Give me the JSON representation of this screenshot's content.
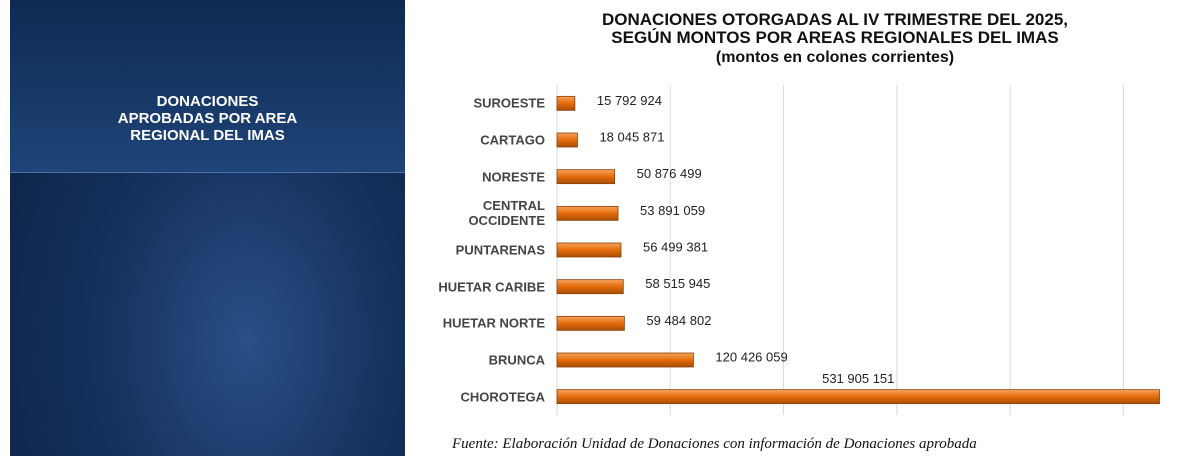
{
  "panel_title": "DONACIONES\nAPROBADAS POR AREA\nREGIONAL DEL IMAS",
  "chart_data": {
    "type": "bar",
    "orientation": "horizontal",
    "title": "DONACIONES OTORGADAS AL IV TRIMESTRE DEL 2025,\nSEGÚN MONTOS POR AREAS REGIONALES DEL IMAS",
    "subtitle": "(montos en colones corrientes)",
    "categories": [
      "SUROESTE",
      "CARTAGO",
      "NORESTE",
      "CENTRAL\nOCCIDENTE",
      "PUNTARENAS",
      "HUETAR CARIBE",
      "HUETAR NORTE",
      "BRUNCA",
      "CHOROTEGA"
    ],
    "values": [
      15792924,
      18045871,
      50876499,
      53891059,
      56499381,
      58515945,
      59484802,
      120426059,
      531905151
    ],
    "value_labels": [
      "15 792 924",
      "18 045 871",
      "50 876 499",
      "53 891 059",
      "56 499 381",
      "58 515 945",
      "59 484 802",
      "120 426 059",
      "531 905 151"
    ],
    "color": "#e46c0a",
    "xlim": [
      0,
      550000000
    ],
    "xticks": [
      0,
      100000000,
      200000000,
      300000000,
      400000000,
      500000000
    ],
    "grid": true,
    "source": "Fuente: Elaboración Unidad de Donaciones con información de Donaciones aprobada"
  }
}
